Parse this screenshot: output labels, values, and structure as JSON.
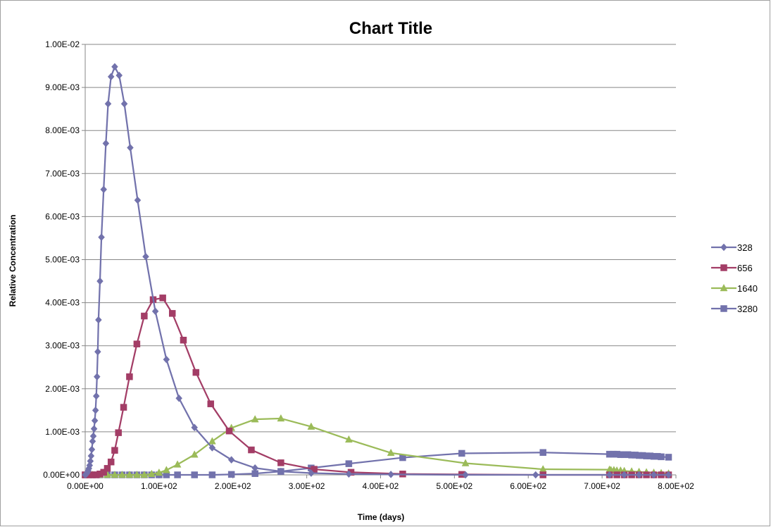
{
  "chart_data": {
    "type": "scatter",
    "title": "Chart Title",
    "xlabel": "Time (days)",
    "ylabel": "Relative Concentration",
    "xlim": [
      0,
      800
    ],
    "ylim": [
      0,
      0.01
    ],
    "x_ticks": [
      0,
      100,
      200,
      300,
      400,
      500,
      600,
      700,
      800
    ],
    "x_tick_labels": [
      "0.00E+00",
      "1.00E+02",
      "2.00E+02",
      "3.00E+02",
      "4.00E+02",
      "5.00E+02",
      "6.00E+02",
      "7.00E+02",
      "8.00E+02"
    ],
    "y_ticks": [
      0,
      0.001,
      0.002,
      0.003,
      0.004,
      0.005,
      0.006,
      0.007,
      0.008,
      0.009,
      0.01
    ],
    "y_tick_labels": [
      "0.00E+00",
      "1.00E-03",
      "2.00E-03",
      "3.00E-03",
      "4.00E-03",
      "5.00E-03",
      "6.00E-03",
      "7.00E-03",
      "8.00E-03",
      "9.00E-03",
      "1.00E-02"
    ],
    "grid": "horizontal major gridlines",
    "legend_position": "right",
    "series": [
      {
        "name": "328",
        "color": "#7272AC",
        "marker": "diamond",
        "x": [
          0,
          1,
          2,
          3,
          4,
          5,
          6,
          7,
          8,
          9,
          10,
          11,
          12,
          13,
          14,
          15,
          16,
          17,
          18,
          20,
          22,
          25,
          28,
          31,
          35,
          40,
          46,
          53,
          61,
          71,
          82,
          95,
          110,
          127,
          148,
          172,
          198,
          230,
          265,
          306,
          357,
          414,
          515,
          610,
          710,
          730,
          750,
          770,
          790
        ],
        "y": [
          0,
          1e-05,
          3e-05,
          6e-05,
          0.0001,
          0.00015,
          0.00022,
          0.00032,
          0.00044,
          0.00059,
          0.00078,
          0.0009,
          0.00107,
          0.00126,
          0.0015,
          0.00183,
          0.00228,
          0.00286,
          0.0036,
          0.0045,
          0.00552,
          0.00663,
          0.0077,
          0.00862,
          0.00925,
          0.00948,
          0.00928,
          0.00862,
          0.0076,
          0.00638,
          0.00507,
          0.0038,
          0.00268,
          0.00178,
          0.0011,
          0.00063,
          0.00035,
          0.00016,
          8e-05,
          4e-05,
          2e-05,
          1e-05,
          0,
          0,
          0,
          0,
          0,
          0,
          0
        ]
      },
      {
        "name": "656",
        "color": "#A33D66",
        "marker": "square",
        "x": [
          0,
          5,
          10,
          15,
          20,
          25,
          30,
          35,
          40,
          45,
          52,
          60,
          70,
          80,
          92,
          105,
          118,
          133,
          150,
          170,
          195,
          225,
          265,
          310,
          360,
          430,
          510,
          620,
          710,
          720,
          730,
          740,
          750,
          760,
          770,
          780,
          790
        ],
        "y": [
          0,
          0,
          0,
          0,
          2e-05,
          6e-05,
          0.00015,
          0.0003,
          0.00057,
          0.00098,
          0.00157,
          0.00228,
          0.00304,
          0.00369,
          0.00407,
          0.00411,
          0.00375,
          0.00313,
          0.00238,
          0.00165,
          0.00102,
          0.00058,
          0.00028,
          0.00013,
          6e-05,
          2e-05,
          1e-05,
          0,
          0,
          0,
          0,
          0,
          0,
          0,
          0,
          0,
          0
        ]
      },
      {
        "name": "1640",
        "color": "#9BBB59",
        "marker": "triangle",
        "x": [
          0,
          10,
          20,
          30,
          40,
          50,
          60,
          70,
          80,
          90,
          100,
          110,
          125,
          148,
          172,
          198,
          230,
          265,
          306,
          357,
          414,
          515,
          620,
          710,
          712,
          716,
          720,
          725,
          730,
          740,
          750,
          760,
          770,
          780,
          790
        ],
        "y": [
          0,
          0,
          0,
          0,
          0,
          0,
          0,
          0,
          0,
          2e-05,
          5e-05,
          0.00011,
          0.00024,
          0.00047,
          0.00078,
          0.00109,
          0.00129,
          0.00131,
          0.00112,
          0.00082,
          0.00051,
          0.00027,
          0.00013,
          0.00012,
          0.00011,
          0.00011,
          0.0001,
          0.0001,
          9e-05,
          8e-05,
          7e-05,
          6e-05,
          5e-05,
          4e-05,
          3e-05
        ]
      },
      {
        "name": "3280",
        "color": "#7272AC",
        "marker": "square",
        "x": [
          0,
          10,
          20,
          30,
          40,
          50,
          60,
          70,
          80,
          90,
          100,
          110,
          125,
          148,
          172,
          198,
          230,
          265,
          306,
          357,
          430,
          510,
          620,
          710,
          715,
          720,
          725,
          730,
          735,
          740,
          745,
          750,
          755,
          760,
          765,
          770,
          775,
          780,
          790
        ],
        "y": [
          0,
          0,
          0,
          0,
          0,
          0,
          0,
          0,
          0,
          0,
          0,
          0,
          0,
          0,
          0,
          1e-05,
          3e-05,
          8e-05,
          0.00016,
          0.00026,
          0.0004,
          0.0005,
          0.00052,
          0.00048,
          0.00048,
          0.00048,
          0.00047,
          0.00047,
          0.00047,
          0.00046,
          0.00046,
          0.00045,
          0.00045,
          0.00044,
          0.00044,
          0.00043,
          0.00043,
          0.00042,
          0.00041
        ]
      }
    ]
  }
}
